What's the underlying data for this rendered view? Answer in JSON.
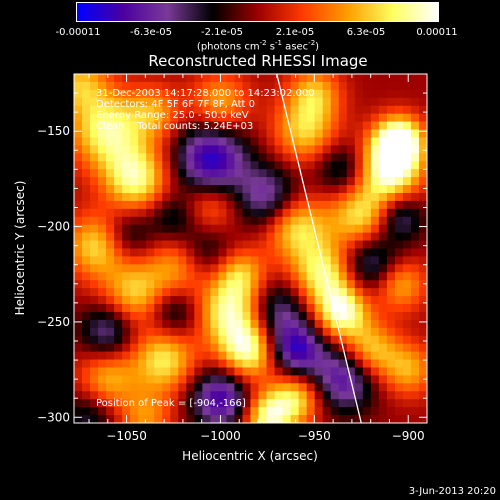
{
  "colorbar": {
    "ticks": [
      "-0.00011",
      "-6.3e-05",
      "-2.1e-05",
      "2.1e-05",
      "6.3e-05",
      "0.00011"
    ],
    "units_main": "(photons cm",
    "units_exp1": "-2",
    "units_mid": " s",
    "units_exp2": "-1",
    "units_after": " asec",
    "units_exp3": "-2",
    "units_close": ")"
  },
  "chart_data": {
    "type": "heatmap",
    "title": "Reconstructed RHESSI Image",
    "xlabel": "Heliocentric X (arcsec)",
    "ylabel": "Heliocentric Y (arcsec)",
    "xlim": [
      -1078,
      -890
    ],
    "ylim": [
      -303,
      -120
    ],
    "x_ticks": [
      -1050,
      -1000,
      -950,
      -900
    ],
    "y_ticks": [
      -150,
      -200,
      -250,
      -300
    ],
    "x_tick_labels": [
      "−1050",
      "−1000",
      "−950",
      "−900"
    ],
    "y_tick_labels": [
      "−150",
      "−200",
      "−250",
      "−300"
    ],
    "value_range": [
      -0.00011,
      0.00011
    ],
    "limb_line": [
      [
        -970,
        -120
      ],
      [
        -925,
        -303
      ]
    ],
    "peak": [
      -904,
      -166
    ],
    "colormap": [
      "#0000ff",
      "#4b00a0",
      "#7a3a98",
      "#000000",
      "#9c0000",
      "#ff3b00",
      "#ff9d00",
      "#ffff60",
      "#ffffff"
    ],
    "annotations": {
      "time": "31-Dec-2003 14:17:28.000 to 14:23:02.000",
      "detectors": "Detectors: 4F 5F 6F 7F 8F, Att 0",
      "energy": "Energy Range: 25.0 - 50.0 keV",
      "clean": "Clean    Total counts: 5.24E+03",
      "peak": "Position of Peak = [-904,-166]"
    }
  },
  "footer": {
    "date": "3-Jun-2013 20:20"
  }
}
